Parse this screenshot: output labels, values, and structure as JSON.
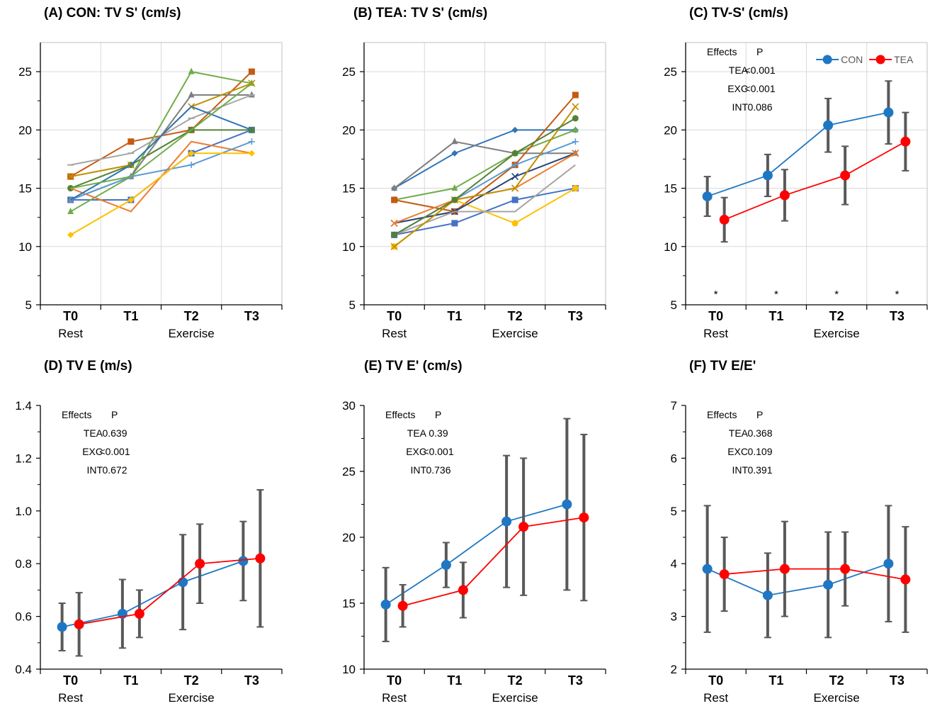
{
  "figure": {
    "colors": {
      "con": "#1F77C4",
      "tea": "#FF0000",
      "errorbar": "#595959",
      "grid": "#D9D9D9"
    }
  },
  "chart_data": [
    {
      "panel": "A",
      "type": "line",
      "title": "(A) CON: TV S' (cm/s)",
      "categories": [
        "T0",
        "T1",
        "T2",
        "T3"
      ],
      "phase_labels": [
        {
          "text": "Rest",
          "at": 0
        },
        {
          "text": "Exercise",
          "at": 2
        }
      ],
      "ylim": [
        5,
        27.5
      ],
      "yticks": [
        5,
        10,
        15,
        20,
        25
      ],
      "grid": true,
      "individual": true,
      "series": [
        {
          "values": [
            16,
            19,
            20,
            25
          ],
          "color": "#C55A11",
          "marker": "square"
        },
        {
          "values": [
            14,
            14,
            18,
            20
          ],
          "color": "#4472C4",
          "marker": "square"
        },
        {
          "values": [
            15,
            17,
            20,
            20
          ],
          "color": "#548235",
          "marker": "circle"
        },
        {
          "values": [
            13,
            16,
            25,
            24
          ],
          "color": "#70AD47",
          "marker": "triangle"
        },
        {
          "values": [
            14,
            16,
            23,
            23
          ],
          "color": "#7F7F7F",
          "marker": "triangle"
        },
        {
          "values": [
            16,
            17,
            22,
            24
          ],
          "color": "#BF9000",
          "marker": "x"
        },
        {
          "values": [
            17,
            18,
            21,
            23
          ],
          "color": "#A5A5A5",
          "marker": "dash"
        },
        {
          "values": [
            15,
            13,
            19,
            18
          ],
          "color": "#ED7D31",
          "marker": "none"
        },
        {
          "values": [
            14,
            16,
            17,
            19
          ],
          "color": "#5B9BD5",
          "marker": "plus"
        },
        {
          "values": [
            11,
            14,
            18,
            18
          ],
          "color": "#FFC000",
          "marker": "diamond"
        },
        {
          "values": [
            14,
            17,
            22,
            20
          ],
          "color": "#2E75B6",
          "marker": "none"
        },
        {
          "values": [
            15,
            16,
            20,
            24
          ],
          "color": "#70AD47",
          "marker": "none"
        }
      ]
    },
    {
      "panel": "B",
      "type": "line",
      "title": "(B) TEA: TV S' (cm/s)",
      "categories": [
        "T0",
        "T1",
        "T2",
        "T3"
      ],
      "phase_labels": [
        {
          "text": "Rest",
          "at": 0
        },
        {
          "text": "Exercise",
          "at": 2
        }
      ],
      "ylim": [
        5,
        27.5
      ],
      "yticks": [
        5,
        10,
        15,
        20,
        25
      ],
      "grid": true,
      "individual": true,
      "series": [
        {
          "values": [
            15,
            18,
            20,
            20
          ],
          "color": "#2E75B6",
          "marker": "diamond"
        },
        {
          "values": [
            15,
            19,
            18,
            18
          ],
          "color": "#7F7F7F",
          "marker": "triangle"
        },
        {
          "values": [
            14,
            15,
            18,
            20
          ],
          "color": "#70AD47",
          "marker": "triangle"
        },
        {
          "values": [
            14,
            13,
            17,
            23
          ],
          "color": "#C55A11",
          "marker": "square"
        },
        {
          "values": [
            11,
            12,
            14,
            15
          ],
          "color": "#4472C4",
          "marker": "square"
        },
        {
          "values": [
            10,
            14,
            12,
            15
          ],
          "color": "#FFC000",
          "marker": "circle"
        },
        {
          "values": [
            12,
            13,
            16,
            18
          ],
          "color": "#264478",
          "marker": "x"
        },
        {
          "values": [
            11,
            14,
            17,
            19
          ],
          "color": "#5B9BD5",
          "marker": "plus"
        },
        {
          "values": [
            12,
            14,
            15,
            18
          ],
          "color": "#ED7D31",
          "marker": "x"
        },
        {
          "values": [
            11,
            13,
            13,
            17
          ],
          "color": "#A5A5A5",
          "marker": "none"
        },
        {
          "values": [
            10,
            14,
            15,
            22
          ],
          "color": "#BF9000",
          "marker": "x"
        },
        {
          "values": [
            11,
            14,
            18,
            21
          ],
          "color": "#548235",
          "marker": "circle"
        }
      ]
    },
    {
      "panel": "C",
      "type": "line",
      "title": "(C) TV-S' (cm/s)",
      "categories": [
        "T0",
        "T1",
        "T2",
        "T3"
      ],
      "phase_labels": [
        {
          "text": "Rest",
          "at": 0
        },
        {
          "text": "Exercise",
          "at": 2
        }
      ],
      "ylim": [
        5,
        27.5
      ],
      "yticks": [
        5,
        10,
        15,
        20,
        25
      ],
      "grid": true,
      "legend": "top-right",
      "significance": [
        "*",
        "*",
        "*",
        "*"
      ],
      "effects_header": [
        "Effects",
        "P"
      ],
      "effects": [
        [
          "TEA",
          "<0.001"
        ],
        [
          "EXC",
          "<0.001"
        ],
        [
          "INT",
          "0.086"
        ]
      ],
      "series": [
        {
          "name": "CON",
          "values": [
            14.3,
            16.1,
            20.4,
            21.5
          ],
          "err": [
            1.7,
            1.8,
            2.3,
            2.7
          ],
          "color": "#1F77C4"
        },
        {
          "name": "TEA",
          "values": [
            12.3,
            14.4,
            16.1,
            19.0
          ],
          "err": [
            1.9,
            2.2,
            2.5,
            2.5
          ],
          "color": "#FF0000"
        }
      ]
    },
    {
      "panel": "D",
      "type": "line",
      "title": "(D) TV E (m/s)",
      "categories": [
        "T0",
        "T1",
        "T2",
        "T3"
      ],
      "phase_labels": [
        {
          "text": "Rest",
          "at": 0
        },
        {
          "text": "Exercise",
          "at": 2
        }
      ],
      "ylim": [
        0.4,
        1.4
      ],
      "yticks": [
        "0.4",
        "0.6",
        "0.8",
        "1.0",
        "1.2",
        "1.4"
      ],
      "grid": false,
      "effects_header": [
        "Effects",
        "P"
      ],
      "effects": [
        [
          "TEA",
          "0.639"
        ],
        [
          "EXC",
          "<0.001"
        ],
        [
          "INT",
          "0.672"
        ]
      ],
      "series": [
        {
          "values": [
            0.56,
            0.61,
            0.73,
            0.81
          ],
          "err": [
            0.09,
            0.13,
            0.18,
            0.15
          ],
          "color": "#1F77C4"
        },
        {
          "values": [
            0.57,
            0.61,
            0.8,
            0.82
          ],
          "err": [
            0.12,
            0.09,
            0.15,
            0.26
          ],
          "color": "#FF0000"
        }
      ]
    },
    {
      "panel": "E",
      "type": "line",
      "title": "(E) TV E' (cm/s)",
      "categories": [
        "T0",
        "T1",
        "T2",
        "T3"
      ],
      "phase_labels": [
        {
          "text": "Rest",
          "at": 0
        },
        {
          "text": "Exercise",
          "at": 2
        }
      ],
      "ylim": [
        10,
        30
      ],
      "yticks": [
        10,
        15,
        20,
        25,
        30
      ],
      "grid": false,
      "effects_header": [
        "Effects",
        "P"
      ],
      "effects": [
        [
          "TEA",
          "0.39"
        ],
        [
          "EXC",
          "<0.001"
        ],
        [
          "INT",
          "0.736"
        ]
      ],
      "series": [
        {
          "values": [
            14.9,
            17.9,
            21.2,
            22.5
          ],
          "err": [
            2.8,
            1.7,
            5.0,
            6.5
          ],
          "color": "#1F77C4"
        },
        {
          "values": [
            14.8,
            16.0,
            20.8,
            21.5
          ],
          "err": [
            1.6,
            2.1,
            5.2,
            6.3
          ],
          "color": "#FF0000"
        }
      ]
    },
    {
      "panel": "F",
      "type": "line",
      "title": "(F) TV E/E'",
      "categories": [
        "T0",
        "T1",
        "T2",
        "T3"
      ],
      "phase_labels": [
        {
          "text": "Rest",
          "at": 0
        },
        {
          "text": "Exercise",
          "at": 2
        }
      ],
      "ylim": [
        2,
        7
      ],
      "yticks": [
        2,
        3,
        4,
        5,
        6,
        7
      ],
      "grid": false,
      "effects_header": [
        "Effects",
        "P"
      ],
      "effects": [
        [
          "TEA",
          "0.368"
        ],
        [
          "EXC",
          "0.109"
        ],
        [
          "INT",
          "0.391"
        ]
      ],
      "series": [
        {
          "values": [
            3.9,
            3.4,
            3.6,
            4.0
          ],
          "err": [
            1.2,
            0.8,
            1.0,
            1.1
          ],
          "color": "#1F77C4"
        },
        {
          "values": [
            3.8,
            3.9,
            3.9,
            3.7
          ],
          "err": [
            0.7,
            0.9,
            0.7,
            1.0
          ],
          "color": "#FF0000"
        }
      ]
    }
  ]
}
